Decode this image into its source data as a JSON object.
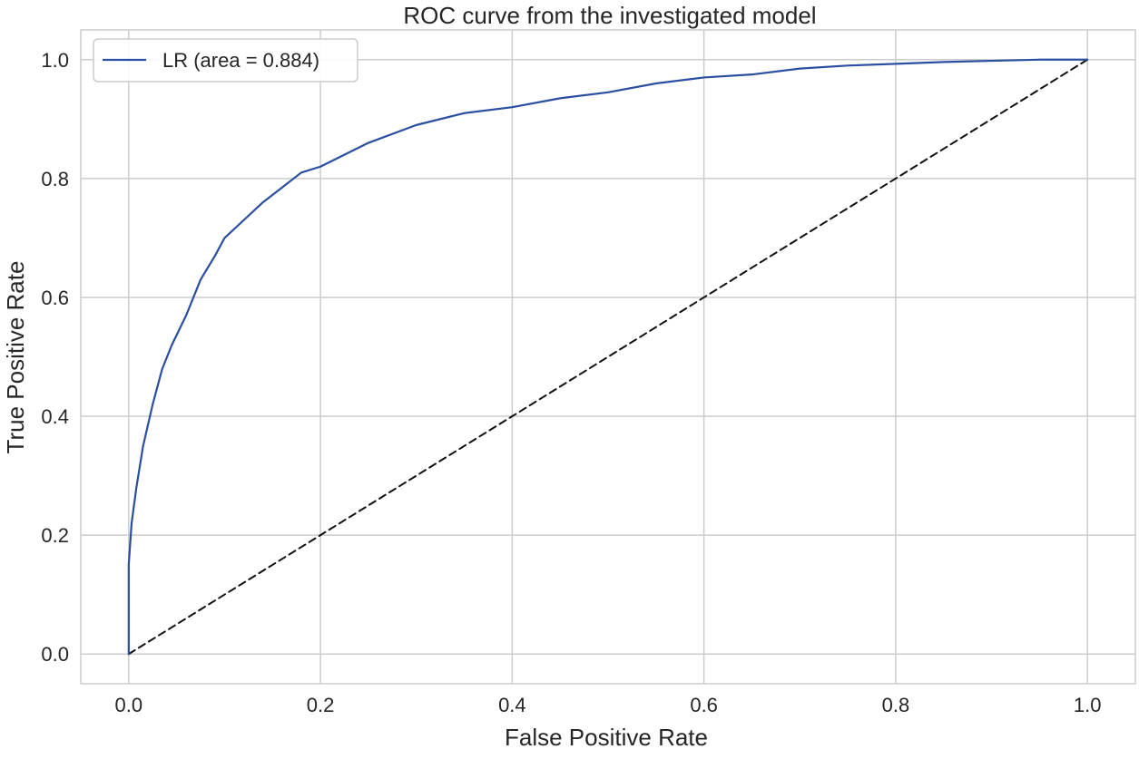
{
  "chart_data": {
    "type": "line",
    "title": "ROC curve from the investigated model",
    "xlabel": "False Positive Rate",
    "ylabel": "True Positive Rate",
    "xlim": [
      -0.05,
      1.05
    ],
    "ylim": [
      -0.05,
      1.05
    ],
    "xticks": [
      0.0,
      0.2,
      0.4,
      0.6,
      0.8,
      1.0
    ],
    "yticks": [
      0.0,
      0.2,
      0.4,
      0.6,
      0.8,
      1.0
    ],
    "xtick_labels": [
      "0.0",
      "0.2",
      "0.4",
      "0.6",
      "0.8",
      "1.0"
    ],
    "ytick_labels": [
      "0.0",
      "0.2",
      "0.4",
      "0.6",
      "0.8",
      "1.0"
    ],
    "grid": true,
    "legend_position": "top-left",
    "series": [
      {
        "name": "LR (area = 0.884)",
        "color": "#2a4fa0",
        "style": "solid",
        "x": [
          0.0,
          0.0,
          0.003,
          0.008,
          0.015,
          0.025,
          0.035,
          0.045,
          0.06,
          0.075,
          0.09,
          0.1,
          0.12,
          0.14,
          0.16,
          0.18,
          0.2,
          0.25,
          0.3,
          0.35,
          0.4,
          0.45,
          0.5,
          0.55,
          0.6,
          0.65,
          0.7,
          0.75,
          0.8,
          0.85,
          0.9,
          0.95,
          1.0
        ],
        "y": [
          0.0,
          0.15,
          0.22,
          0.28,
          0.35,
          0.42,
          0.48,
          0.52,
          0.57,
          0.63,
          0.67,
          0.7,
          0.73,
          0.76,
          0.785,
          0.81,
          0.82,
          0.86,
          0.89,
          0.91,
          0.92,
          0.935,
          0.945,
          0.96,
          0.97,
          0.975,
          0.985,
          0.99,
          0.993,
          0.996,
          0.998,
          1.0,
          1.0
        ]
      },
      {
        "color": "#111111",
        "style": "dashed",
        "x": [
          0.0,
          1.0
        ],
        "y": [
          0.0,
          1.0
        ]
      }
    ]
  }
}
